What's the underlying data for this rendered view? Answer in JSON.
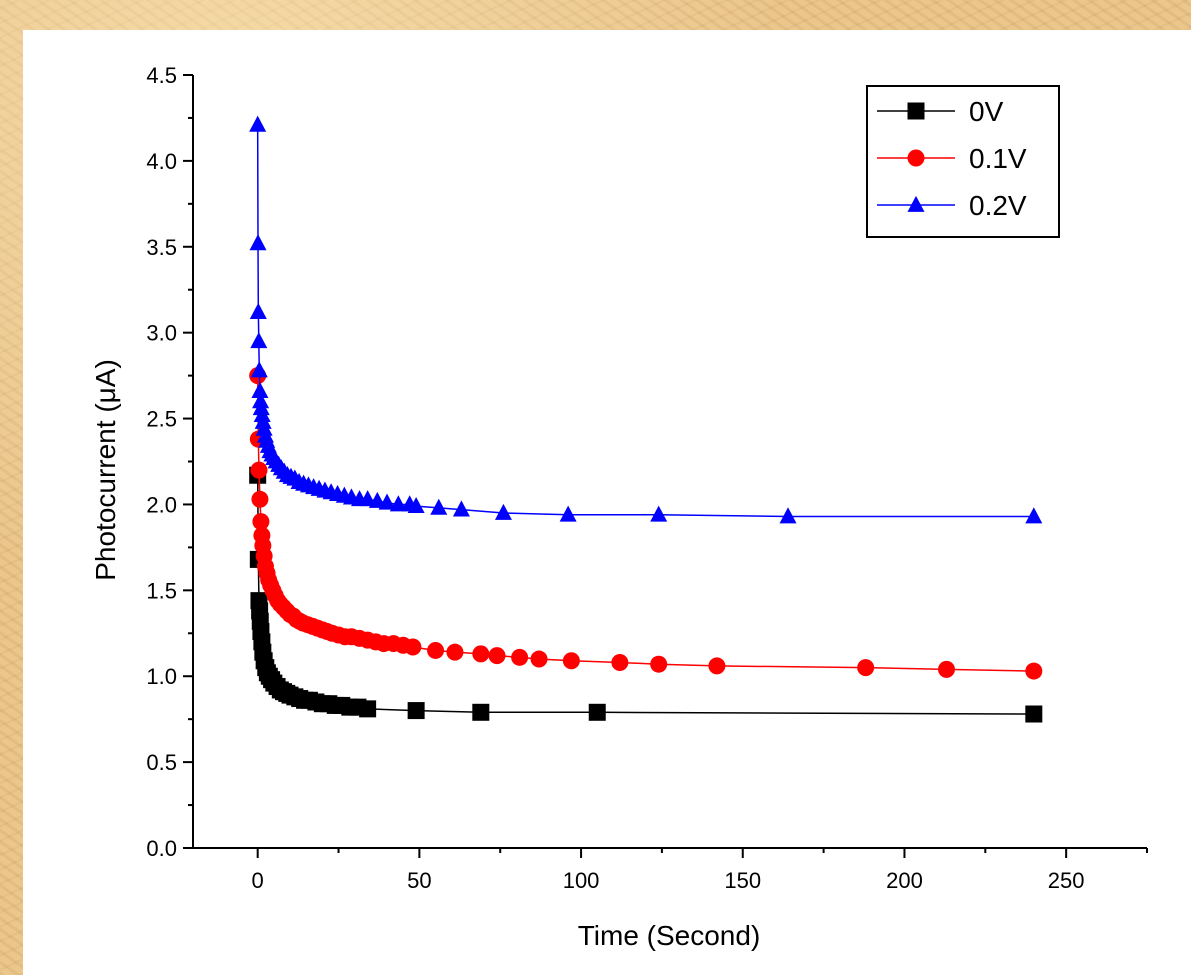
{
  "chart_data": {
    "type": "scatter",
    "title": "",
    "xlabel": "Time (Second)",
    "ylabel": "Photocurrent (μA)",
    "xlim": [
      -20,
      275
    ],
    "ylim": [
      0,
      4.5
    ],
    "xticks": [
      0,
      50,
      100,
      150,
      200,
      250
    ],
    "xtick_labels": [
      "0",
      "50",
      "100",
      "150",
      "200",
      "250"
    ],
    "yticks": [
      0.0,
      0.5,
      1.0,
      1.5,
      2.0,
      2.5,
      3.0,
      3.5,
      4.0,
      4.5
    ],
    "ytick_labels": [
      "0.0",
      "0.5",
      "1.0",
      "1.5",
      "2.0",
      "2.5",
      "3.0",
      "3.5",
      "4.0",
      "4.5"
    ],
    "grid": false,
    "legend_position": "top-right",
    "series": [
      {
        "name": "0V",
        "color": "#000000",
        "marker": "square",
        "x": [
          0,
          0.2,
          0.4,
          0.6,
          0.8,
          1.0,
          1.3,
          1.6,
          2.0,
          2.5,
          3.0,
          3.6,
          4.3,
          5.0,
          6,
          7,
          8,
          9,
          10,
          11.5,
          13,
          14.5,
          16,
          18,
          20,
          22,
          24,
          26,
          28.5,
          31,
          34,
          49,
          69,
          105,
          240
        ],
        "y": [
          2.17,
          1.68,
          1.44,
          1.38,
          1.32,
          1.26,
          1.2,
          1.14,
          1.09,
          1.05,
          1.02,
          1.0,
          0.98,
          0.96,
          0.94,
          0.92,
          0.91,
          0.9,
          0.89,
          0.88,
          0.87,
          0.86,
          0.86,
          0.85,
          0.84,
          0.84,
          0.83,
          0.83,
          0.82,
          0.82,
          0.81,
          0.8,
          0.79,
          0.79,
          0.78
        ]
      },
      {
        "name": "0.1V",
        "color": "#ff0000",
        "marker": "circle",
        "x": [
          0,
          0.2,
          0.4,
          0.7,
          1.0,
          1.3,
          1.6,
          2.0,
          2.4,
          2.9,
          3.4,
          4.0,
          4.7,
          5.4,
          6.2,
          7,
          8,
          9,
          10,
          11,
          12,
          13,
          14,
          15.5,
          17,
          18.5,
          20,
          21.5,
          23,
          25,
          27,
          29,
          31.5,
          34,
          36.5,
          39,
          42,
          45,
          48,
          55,
          61,
          69,
          74,
          81,
          87,
          97,
          112,
          124,
          142,
          188,
          213,
          240
        ],
        "y": [
          2.75,
          2.38,
          2.2,
          2.03,
          1.9,
          1.82,
          1.76,
          1.7,
          1.64,
          1.6,
          1.56,
          1.53,
          1.5,
          1.47,
          1.44,
          1.42,
          1.4,
          1.38,
          1.36,
          1.35,
          1.33,
          1.32,
          1.31,
          1.3,
          1.29,
          1.28,
          1.27,
          1.26,
          1.25,
          1.24,
          1.23,
          1.23,
          1.22,
          1.21,
          1.2,
          1.19,
          1.19,
          1.18,
          1.17,
          1.15,
          1.14,
          1.13,
          1.12,
          1.11,
          1.1,
          1.09,
          1.08,
          1.07,
          1.06,
          1.05,
          1.04,
          1.03
        ]
      },
      {
        "name": "0.2V",
        "color": "#0000ff",
        "marker": "triangle",
        "x": [
          0,
          0.1,
          0.2,
          0.35,
          0.5,
          0.7,
          0.9,
          1.1,
          1.4,
          1.7,
          2.0,
          2.4,
          2.8,
          3.3,
          3.8,
          4.4,
          5.0,
          5.7,
          6.5,
          7.3,
          8.2,
          9.2,
          10.3,
          11.5,
          12.8,
          14.2,
          15.7,
          17.3,
          19,
          20.8,
          22.7,
          24.7,
          26.8,
          29,
          31.5,
          34,
          37,
          40,
          43.5,
          47,
          49,
          56,
          63,
          76,
          96,
          124,
          164,
          240
        ],
        "y": [
          4.21,
          3.52,
          3.12,
          2.95,
          2.78,
          2.66,
          2.6,
          2.56,
          2.52,
          2.48,
          2.44,
          2.4,
          2.37,
          2.34,
          2.31,
          2.29,
          2.27,
          2.25,
          2.23,
          2.21,
          2.19,
          2.17,
          2.16,
          2.15,
          2.13,
          2.12,
          2.11,
          2.1,
          2.09,
          2.08,
          2.07,
          2.06,
          2.05,
          2.04,
          2.03,
          2.03,
          2.02,
          2.01,
          2.0,
          2.0,
          1.99,
          1.98,
          1.97,
          1.95,
          1.94,
          1.94,
          1.93,
          1.93
        ]
      }
    ]
  }
}
